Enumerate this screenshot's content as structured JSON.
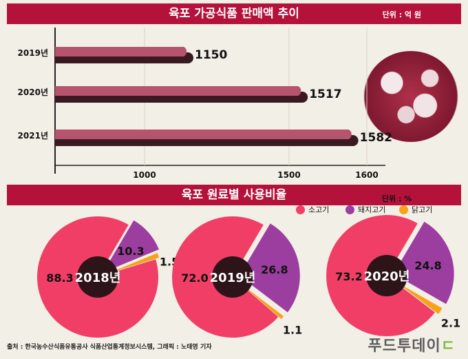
{
  "bar_section": {
    "title": "육포 가공식품 판매액 추이",
    "unit": "단위 : 억 원"
  },
  "pie_section": {
    "title": "육포 원료별 사용비율",
    "unit": "단위 : %"
  },
  "legend": [
    {
      "label": "소고기",
      "color": "#f03e66"
    },
    {
      "label": "돼지고기",
      "color": "#9c3e9f"
    },
    {
      "label": "닭고기",
      "color": "#f6a21a"
    }
  ],
  "chart_data": [
    {
      "type": "bar",
      "title": "육포 가공식품 판매액 추이",
      "unit": "단위 : 억 원",
      "categories": [
        "2019년",
        "2020년",
        "2021년"
      ],
      "values": [
        1150,
        1517,
        1582
      ],
      "xticks": [
        1000,
        1500,
        1600
      ],
      "colors": {
        "bar_top": "#b5546c",
        "bar_bottom": "#3a1a20"
      }
    },
    {
      "type": "pie",
      "unit": "단위 : %",
      "labels": [
        "소고기",
        "돼지고기",
        "닭고기"
      ],
      "colors": [
        "#f03e66",
        "#9c3e9f",
        "#f6a21a"
      ],
      "pies": [
        {
          "year": "2018년",
          "values": [
            88.3,
            10.3,
            1.5
          ]
        },
        {
          "year": "2019년",
          "values": [
            72.0,
            26.8,
            1.1
          ]
        },
        {
          "year": "2020년",
          "values": [
            73.2,
            24.8,
            2.1
          ]
        }
      ]
    }
  ],
  "footer": {
    "source": "출처 : 한국농수산식품유통공사 식품산업통계정보시스템, 그래픽 : 노태영 기자",
    "brand": "푸드투데이",
    "brand_leaf": "ㄷ"
  }
}
